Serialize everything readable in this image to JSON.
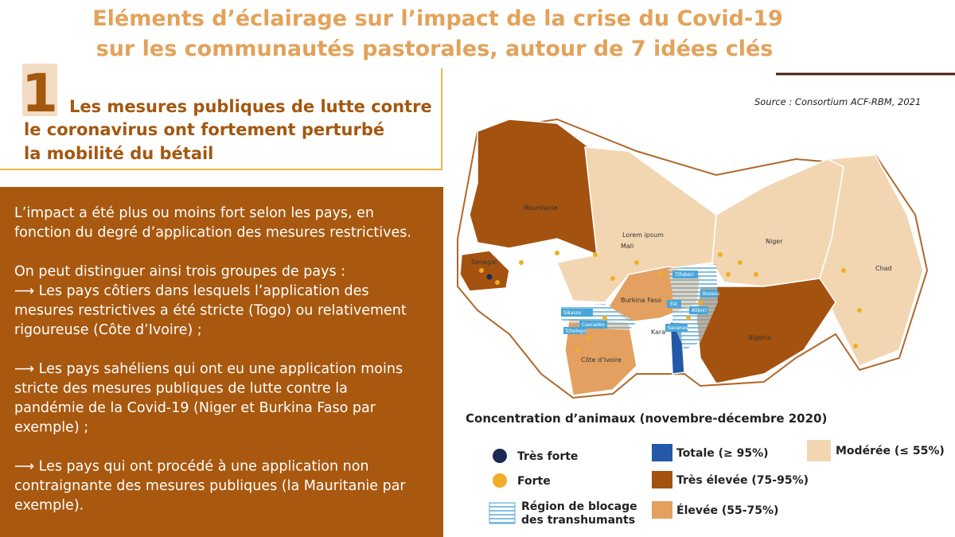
{
  "header": {
    "title_lines": [
      "Eléments d’éclairage sur l’impact de la crise du Covid-19",
      "sur les communautés pastorales, autour de 7 idées clés"
    ]
  },
  "section": {
    "number": "1",
    "heading_lines": [
      "Les mesures publiques de lutte contre",
      "le coronavirus ont fortement perturbé",
      "la mobilité du bétail"
    ]
  },
  "body": {
    "paragraphs": [
      [
        "L’impact a été plus ou moins fort selon les pays, en",
        "fonction du degré d’application des mesures restrictives."
      ],
      [
        "On peut distinguer ainsi trois groupes de pays :",
        "⟶ Les pays côtiers dans lesquels l’application des",
        "mesures restrictives a été stricte (Togo) ou relativement",
        "rigoureuse (Côte d’Ivoire) ;"
      ],
      [
        "⟶ Les pays sahéliens qui ont eu une application moins",
        "stricte des mesures publiques de lutte contre la",
        "pandémie de la Covid-19 (Niger et Burkina Faso par",
        "exemple) ;"
      ],
      [
        "⟶ Les pays qui ont procédé à une application non",
        "contraignante des mesures publiques (la Mauritanie par",
        "exemple)."
      ]
    ]
  },
  "map": {
    "source": "Source : Consortium ACF-RBM, 2021",
    "labels": [
      "Mauritanie",
      "Mali",
      "Lorem ipsum",
      "Niger",
      "Chad",
      "Senegal",
      "Burkina Faso",
      "Nigeria",
      "Côte d’Ivoire",
      "Sikasso",
      "Cascades",
      "Tchologo",
      "Tillabéri",
      "Bossou",
      "Est",
      "Alibori",
      "Savanes",
      "Kara"
    ]
  },
  "legend": {
    "title": "Concentration d’animaux (novembre-décembre 2020)",
    "items": [
      "Très forte",
      "Forte",
      "Région de blocage des transhumants",
      "Totale (≥ 95%)",
      "Très élevée (75-95%)",
      "Élevée (55-75%)",
      "Modérée (≤ 55%)"
    ]
  }
}
